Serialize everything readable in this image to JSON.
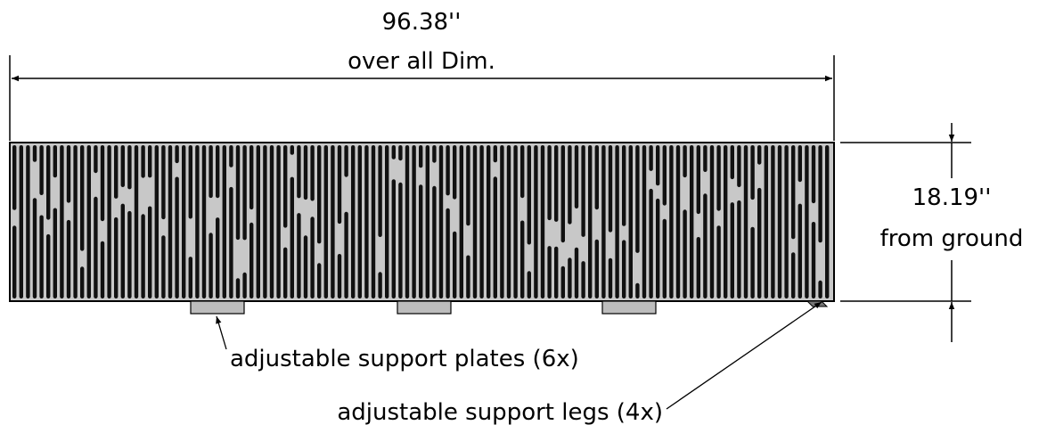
{
  "overall": {
    "value": "96.38''",
    "label": "over all Dim."
  },
  "height": {
    "value": "18.19''",
    "label": "from ground"
  },
  "callouts": {
    "plates": "adjustable support plates (6x)",
    "legs": "adjustable support legs (4x)"
  },
  "colors": {
    "line": "#000000",
    "panel_dark": "#111111",
    "panel_light": "#c8c8c8",
    "plate": "#bdbdbd"
  }
}
